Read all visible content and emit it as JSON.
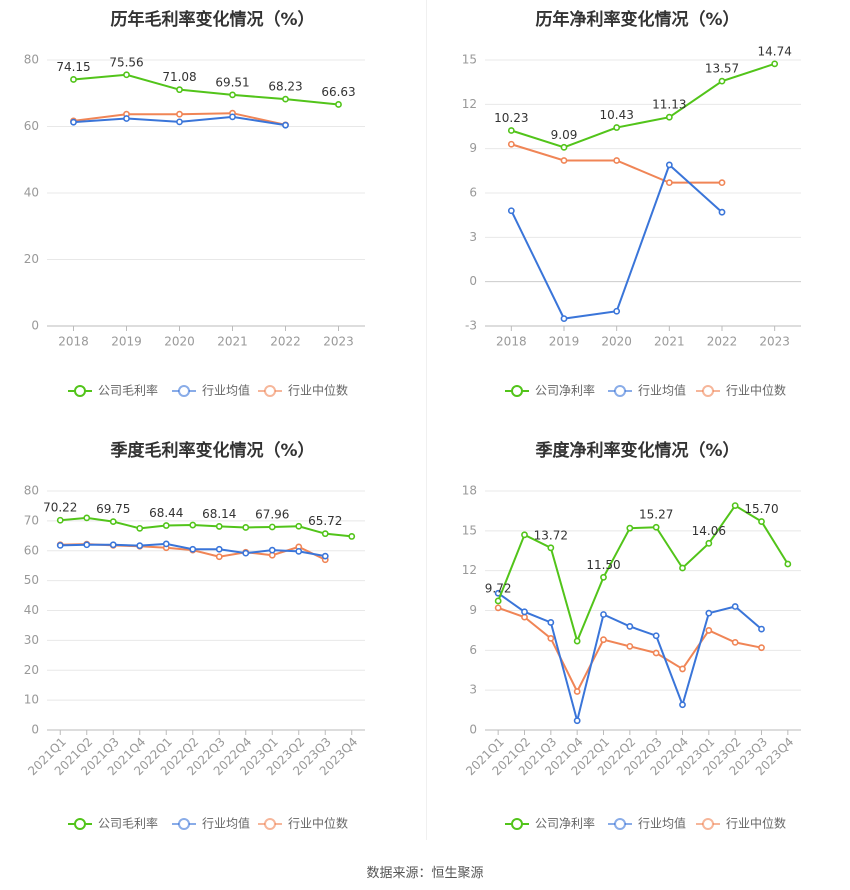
{
  "source_label": "数据来源：恒生聚源",
  "chart_data": [
    {
      "type": "line",
      "title": "历年毛利率变化情况（%）",
      "categories": [
        "2018",
        "2019",
        "2020",
        "2021",
        "2022",
        "2023"
      ],
      "ylim": [
        0,
        80
      ],
      "yticks": [
        0,
        20,
        40,
        60,
        80
      ],
      "grid": true,
      "legend_position": "bottom",
      "series": [
        {
          "name": "公司毛利率",
          "color": "#52c41a",
          "values": [
            74.15,
            75.56,
            71.08,
            69.51,
            68.23,
            66.63
          ],
          "labels": [
            "74.15",
            "75.56",
            "71.08",
            "69.51",
            "68.23",
            "66.63"
          ]
        },
        {
          "name": "行业均值",
          "color": "#3a75d9",
          "values": [
            61.3,
            62.4,
            61.4,
            62.9,
            60.4,
            null
          ]
        },
        {
          "name": "行业中位数",
          "color": "#f08556",
          "values": [
            61.7,
            63.7,
            63.7,
            64.0,
            60.5,
            null
          ]
        }
      ]
    },
    {
      "type": "line",
      "title": "历年净利率变化情况（%）",
      "categories": [
        "2018",
        "2019",
        "2020",
        "2021",
        "2022",
        "2023"
      ],
      "ylim": [
        -3,
        15
      ],
      "yticks": [
        -3,
        0,
        3,
        6,
        9,
        12,
        15
      ],
      "grid": true,
      "legend_position": "bottom",
      "series": [
        {
          "name": "公司净利率",
          "color": "#52c41a",
          "values": [
            10.23,
            9.09,
            10.43,
            11.13,
            13.57,
            14.74
          ],
          "labels": [
            "10.23",
            "9.09",
            "10.43",
            "11.13",
            "13.57",
            "14.74"
          ]
        },
        {
          "name": "行业均值",
          "color": "#3a75d9",
          "values": [
            4.8,
            -2.5,
            -2.0,
            7.9,
            4.7,
            null
          ]
        },
        {
          "name": "行业中位数",
          "color": "#f08556",
          "values": [
            9.3,
            8.2,
            8.2,
            6.7,
            6.7,
            null
          ]
        }
      ]
    },
    {
      "type": "line",
      "title": "季度毛利率变化情况（%）",
      "categories": [
        "2021Q1",
        "2021Q2",
        "2021Q3",
        "2021Q4",
        "2022Q1",
        "2022Q2",
        "2022Q3",
        "2022Q4",
        "2023Q1",
        "2023Q2",
        "2023Q3",
        "2023Q4"
      ],
      "ylim": [
        0,
        80
      ],
      "yticks": [
        0,
        10,
        20,
        30,
        40,
        50,
        60,
        70,
        80
      ],
      "grid": true,
      "legend_position": "bottom",
      "series": [
        {
          "name": "公司毛利率",
          "color": "#52c41a",
          "values": [
            70.22,
            71.0,
            69.75,
            67.5,
            68.44,
            68.6,
            68.14,
            67.8,
            67.96,
            68.2,
            65.72,
            64.8
          ],
          "labels": [
            "70.22",
            "",
            "69.75",
            "",
            "68.44",
            "",
            "68.14",
            "",
            "67.96",
            "",
            "65.72",
            ""
          ]
        },
        {
          "name": "行业均值",
          "color": "#3a75d9",
          "values": [
            61.8,
            62.0,
            62.0,
            61.7,
            62.3,
            60.5,
            60.5,
            59.2,
            60.2,
            59.8,
            58.2,
            null
          ]
        },
        {
          "name": "行业中位数",
          "color": "#f08556",
          "values": [
            62.0,
            62.2,
            61.8,
            61.5,
            61.0,
            60.2,
            58.0,
            59.5,
            58.5,
            61.3,
            57.0,
            null
          ]
        }
      ]
    },
    {
      "type": "line",
      "title": "季度净利率变化情况（%）",
      "categories": [
        "2021Q1",
        "2021Q2",
        "2021Q3",
        "2021Q4",
        "2022Q1",
        "2022Q2",
        "2022Q3",
        "2022Q4",
        "2023Q1",
        "2023Q2",
        "2023Q3",
        "2023Q4"
      ],
      "ylim": [
        0,
        18
      ],
      "yticks": [
        0,
        3,
        6,
        9,
        12,
        15,
        18
      ],
      "grid": true,
      "legend_position": "bottom",
      "series": [
        {
          "name": "公司净利率",
          "color": "#52c41a",
          "values": [
            9.72,
            14.7,
            13.72,
            6.7,
            11.5,
            15.2,
            15.27,
            12.2,
            14.06,
            16.9,
            15.7,
            12.5
          ],
          "labels": [
            "9.72",
            "",
            "13.72",
            "",
            "11.50",
            "",
            "15.27",
            "",
            "14.06",
            "",
            "15.70",
            ""
          ]
        },
        {
          "name": "行业均值",
          "color": "#3a75d9",
          "values": [
            10.3,
            8.9,
            8.1,
            0.7,
            8.7,
            7.8,
            7.1,
            1.9,
            8.8,
            9.3,
            7.6,
            null
          ]
        },
        {
          "name": "行业中位数",
          "color": "#f08556",
          "values": [
            9.2,
            8.5,
            6.9,
            2.9,
            6.8,
            6.3,
            5.8,
            4.6,
            7.5,
            6.6,
            6.2,
            null
          ]
        }
      ]
    }
  ]
}
